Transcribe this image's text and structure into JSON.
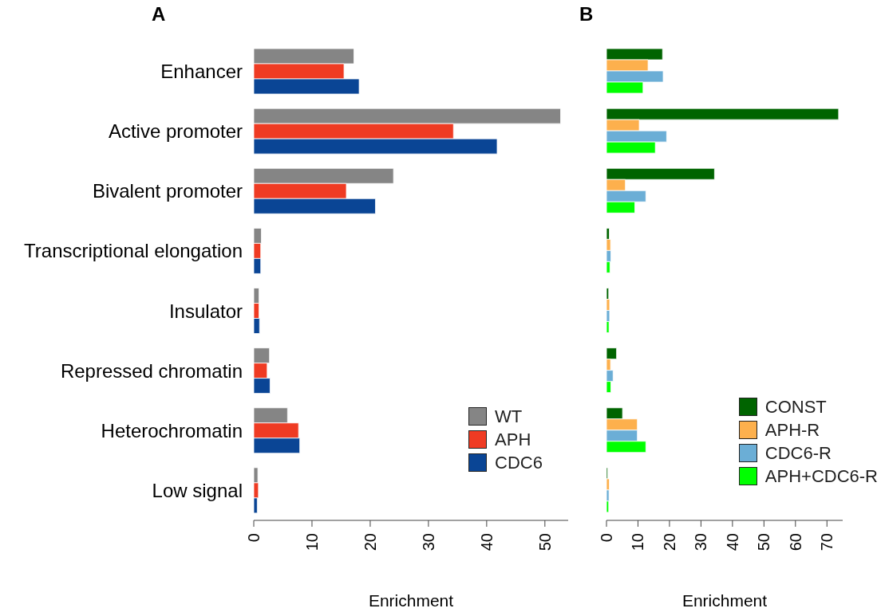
{
  "chart_data": [
    {
      "type": "bar",
      "title": "A",
      "orientation": "horizontal",
      "xlabel": "Enrichment",
      "categories": [
        "Enhancer",
        "Active promoter",
        "Bivalent promoter",
        "Transcriptional elongation",
        "Insulator",
        "Repressed chromatin",
        "Heterochromatin",
        "Low signal"
      ],
      "series": [
        {
          "name": "WT",
          "color": "#858585",
          "values": [
            17.2,
            52.7,
            24.0,
            1.3,
            0.9,
            2.7,
            5.8,
            0.7
          ]
        },
        {
          "name": "APH",
          "color": "#ef3b23",
          "values": [
            15.5,
            34.3,
            15.9,
            1.2,
            0.9,
            2.3,
            7.7,
            0.8
          ]
        },
        {
          "name": "CDC6",
          "color": "#0a4595",
          "values": [
            18.1,
            41.8,
            20.9,
            1.2,
            1.0,
            2.8,
            7.9,
            0.6
          ]
        }
      ],
      "xlim": [
        0,
        54
      ],
      "xticks": [
        0,
        10,
        20,
        30,
        40,
        50
      ],
      "grid": false,
      "legend": "bottom right"
    },
    {
      "type": "bar",
      "title": "B",
      "orientation": "horizontal",
      "xlabel": "Enrichment",
      "categories": [
        null,
        null,
        null,
        null,
        null,
        null,
        null,
        null
      ],
      "tick_labels": "x",
      "series": [
        {
          "name": "CONST",
          "color": "#006400",
          "values": [
            17.8,
            73.7,
            34.3,
            0.9,
            0.7,
            3.2,
            5.1,
            0.4
          ]
        },
        {
          "name": "APH-R",
          "color": "#fdb04d",
          "values": [
            13.2,
            10.4,
            6.0,
            1.3,
            1.0,
            1.3,
            9.8,
            0.9
          ]
        },
        {
          "name": "CDC6-R",
          "color": "#6baed6",
          "values": [
            18.0,
            19.1,
            12.5,
            1.4,
            1.0,
            2.1,
            9.8,
            0.8
          ]
        },
        {
          "name": "APH+CDC6-R",
          "color": "#00ff00",
          "values": [
            11.6,
            15.5,
            9.0,
            1.1,
            0.8,
            1.4,
            12.5,
            0.7
          ]
        }
      ],
      "xlim": [
        0,
        75
      ],
      "xticks": [
        0,
        10,
        20,
        30,
        40,
        50,
        60,
        70
      ],
      "grid": false,
      "legend": "bottom right"
    }
  ]
}
